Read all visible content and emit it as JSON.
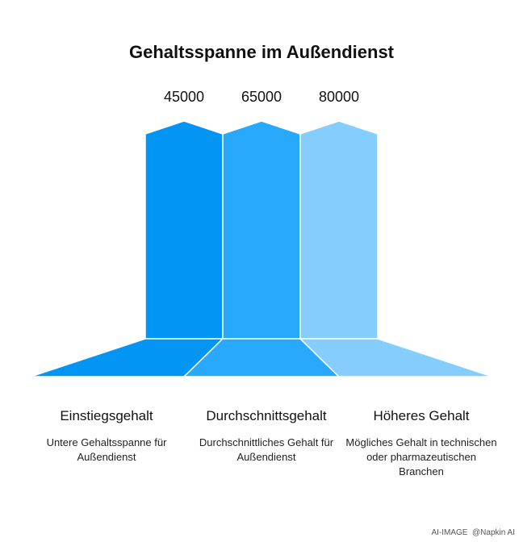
{
  "title": "Gehaltsspanne im Außendienst",
  "colors": {
    "left": "#0395f4",
    "middle": "#28a9fb",
    "right": "#85cdfd"
  },
  "tiers": [
    {
      "value": "45000",
      "name": "Einstiegsgehalt",
      "description": "Untere Gehaltsspanne für Außendienst"
    },
    {
      "value": "65000",
      "name": "Durchschnittsgehalt",
      "description": "Durchschnittliches Gehalt für Außendienst"
    },
    {
      "value": "80000",
      "name": "Höheres Gehalt",
      "description": "Mögliches Gehalt in technischen oder pharmazeutischen Branchen"
    }
  ],
  "footer": {
    "source": "AI-IMAGE",
    "brand": "@Napkin AI"
  }
}
